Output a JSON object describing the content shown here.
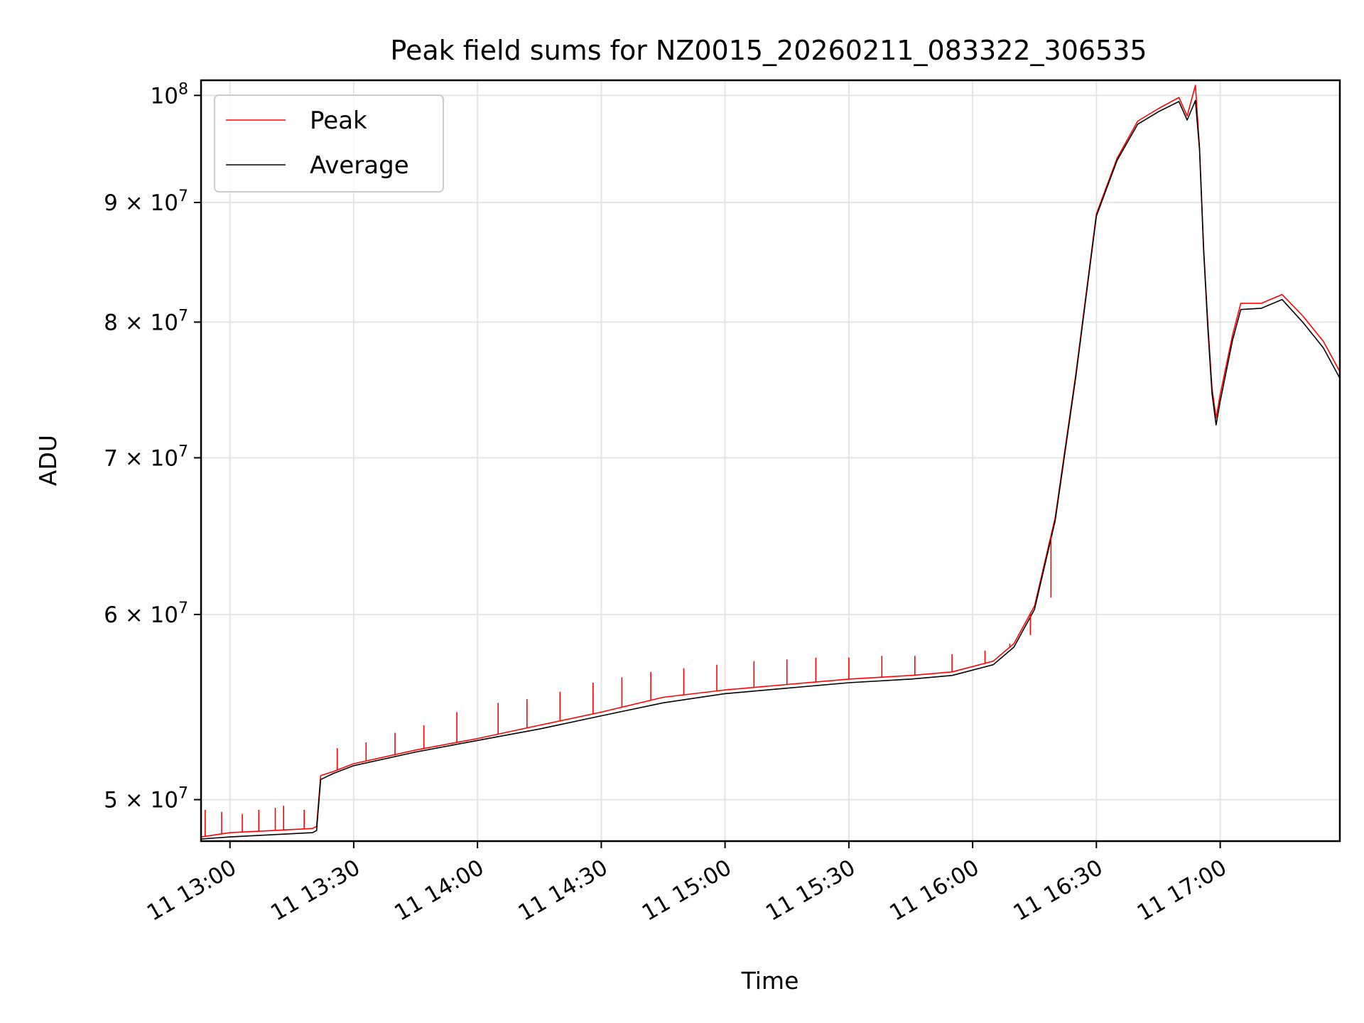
{
  "chart_data": {
    "type": "line",
    "title": "Peak field sums for NZ0015_20260211_083322_306535",
    "xlabel": "Time",
    "ylabel": "ADU",
    "y_scale": "log",
    "grid": true,
    "legend_position": "top-left",
    "xlim": [
      "11 12:53",
      "11 17:29"
    ],
    "ylim": [
      48000000,
      101500000
    ],
    "x_ticks": [
      "11 13:00",
      "11 13:30",
      "11 14:00",
      "11 14:30",
      "11 15:00",
      "11 15:30",
      "11 16:00",
      "11 16:30",
      "11 17:00"
    ],
    "y_ticks": [
      {
        "value": 50000000,
        "mantissa": "5",
        "exponent": "7"
      },
      {
        "value": 60000000,
        "mantissa": "6",
        "exponent": "7"
      },
      {
        "value": 70000000,
        "mantissa": "7",
        "exponent": "7"
      },
      {
        "value": 80000000,
        "mantissa": "8",
        "exponent": "7"
      },
      {
        "value": 90000000,
        "mantissa": "9",
        "exponent": "7"
      },
      {
        "value": 100000000,
        "mantissa": "",
        "exponent": "8"
      }
    ],
    "y_tick_base": "10",
    "y_tick_times": "×",
    "x_axis": [
      "11 12:53",
      "11 13:00",
      "11 13:10",
      "11 13:20",
      "11 13:21",
      "11 13:22",
      "11 13:25",
      "11 13:30",
      "11 13:45",
      "11 14:00",
      "11 14:15",
      "11 14:30",
      "11 14:45",
      "11 15:00",
      "11 15:15",
      "11 15:30",
      "11 15:45",
      "11 15:55",
      "11 16:05",
      "11 16:10",
      "11 16:15",
      "11 16:20",
      "11 16:25",
      "11 16:30",
      "11 16:35",
      "11 16:40",
      "11 16:45",
      "11 16:50",
      "11 16:52",
      "11 16:54",
      "11 16:55",
      "11 16:56",
      "11 16:57",
      "11 16:58",
      "11 16:59",
      "11 17:00",
      "11 17:03",
      "11 17:05",
      "11 17:10",
      "11 17:15",
      "11 17:20",
      "11 17:25",
      "11 17:29"
    ],
    "series": [
      {
        "name": "Peak",
        "color": "#ff0000",
        "values": [
          48200000,
          48400000,
          48500000,
          48600000,
          48700000,
          51200000,
          51400000,
          51800000,
          52500000,
          53100000,
          53800000,
          54500000,
          55300000,
          55700000,
          56000000,
          56300000,
          56500000,
          56700000,
          57300000,
          58300000,
          60500000,
          66000000,
          76000000,
          89000000,
          94000000,
          97500000,
          98700000,
          99800000,
          98000000,
          101000000,
          95000000,
          86000000,
          80000000,
          75000000,
          72800000,
          74500000,
          79000000,
          81500000,
          81500000,
          82200000,
          80500000,
          78500000,
          76200000
        ],
        "spikes": {
          "x": [
            "11 12:54",
            "11 12:58",
            "11 13:03",
            "11 13:07",
            "11 13:11",
            "11 13:13",
            "11 13:18",
            "11 13:26",
            "11 13:33",
            "11 13:40",
            "11 13:47",
            "11 13:55",
            "11 14:05",
            "11 14:12",
            "11 14:20",
            "11 14:28",
            "11 14:35",
            "11 14:42",
            "11 14:50",
            "11 14:58",
            "11 15:07",
            "11 15:15",
            "11 15:22",
            "11 15:30",
            "11 15:38",
            "11 15:46",
            "11 15:55",
            "11 16:03",
            "11 16:09",
            "11 16:14",
            "11 16:19"
          ],
          "values": [
            49500000,
            49400000,
            49300000,
            49500000,
            49600000,
            49700000,
            49500000,
            52600000,
            52900000,
            53400000,
            53800000,
            54500000,
            55000000,
            55200000,
            55600000,
            56100000,
            56400000,
            56700000,
            56900000,
            57100000,
            57300000,
            57400000,
            57500000,
            57500000,
            57600000,
            57600000,
            57700000,
            57900000,
            58300000,
            58800000,
            61000000
          ]
        }
      },
      {
        "name": "Average",
        "color": "#000000",
        "values": [
          48100000,
          48200000,
          48300000,
          48400000,
          48500000,
          51000000,
          51300000,
          51700000,
          52400000,
          53000000,
          53600000,
          54300000,
          55000000,
          55500000,
          55800000,
          56100000,
          56300000,
          56500000,
          57100000,
          58100000,
          60300000,
          65800000,
          75800000,
          88800000,
          93800000,
          97200000,
          98400000,
          99400000,
          97600000,
          99500000,
          94800000,
          85800000,
          79600000,
          74600000,
          72300000,
          74000000,
          78600000,
          81000000,
          81100000,
          81800000,
          80000000,
          78000000,
          75700000
        ]
      }
    ]
  }
}
